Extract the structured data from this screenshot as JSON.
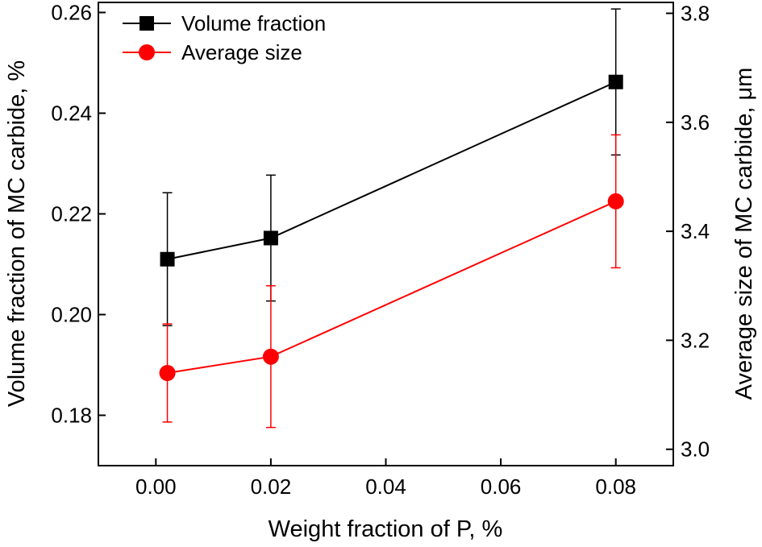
{
  "chart_data": {
    "type": "line",
    "xlabel": "Weight fraction of P, %",
    "ylabel": "Volume fraction of MC carbide, %",
    "y2label": "Average size of MC carbide, μm",
    "xlim": [
      -0.01,
      0.09
    ],
    "ylim": [
      0.17,
      0.262
    ],
    "y2lim": [
      2.97,
      3.82
    ],
    "x_ticks": [
      "0.00",
      "0.02",
      "0.04",
      "0.06",
      "0.08"
    ],
    "y_ticks": [
      "0.18",
      "0.20",
      "0.22",
      "0.24",
      "0.26"
    ],
    "y2_ticks": [
      "3.0",
      "3.2",
      "3.4",
      "3.6",
      "3.8"
    ],
    "grid": false,
    "legend_position": "top-left",
    "series": [
      {
        "name": "Volume fraction",
        "axis": "left",
        "color": "#000000",
        "marker": "square",
        "x": [
          0.002,
          0.02,
          0.08
        ],
        "y": [
          0.211,
          0.2152,
          0.2462
        ],
        "err": [
          0.0132,
          0.0125,
          0.0145
        ]
      },
      {
        "name": "Average size",
        "axis": "right",
        "color": "#ff0000",
        "marker": "circle",
        "x": [
          0.002,
          0.02,
          0.08
        ],
        "y": [
          3.14,
          3.17,
          3.455
        ],
        "err": [
          0.09,
          0.13,
          0.122
        ]
      }
    ]
  }
}
